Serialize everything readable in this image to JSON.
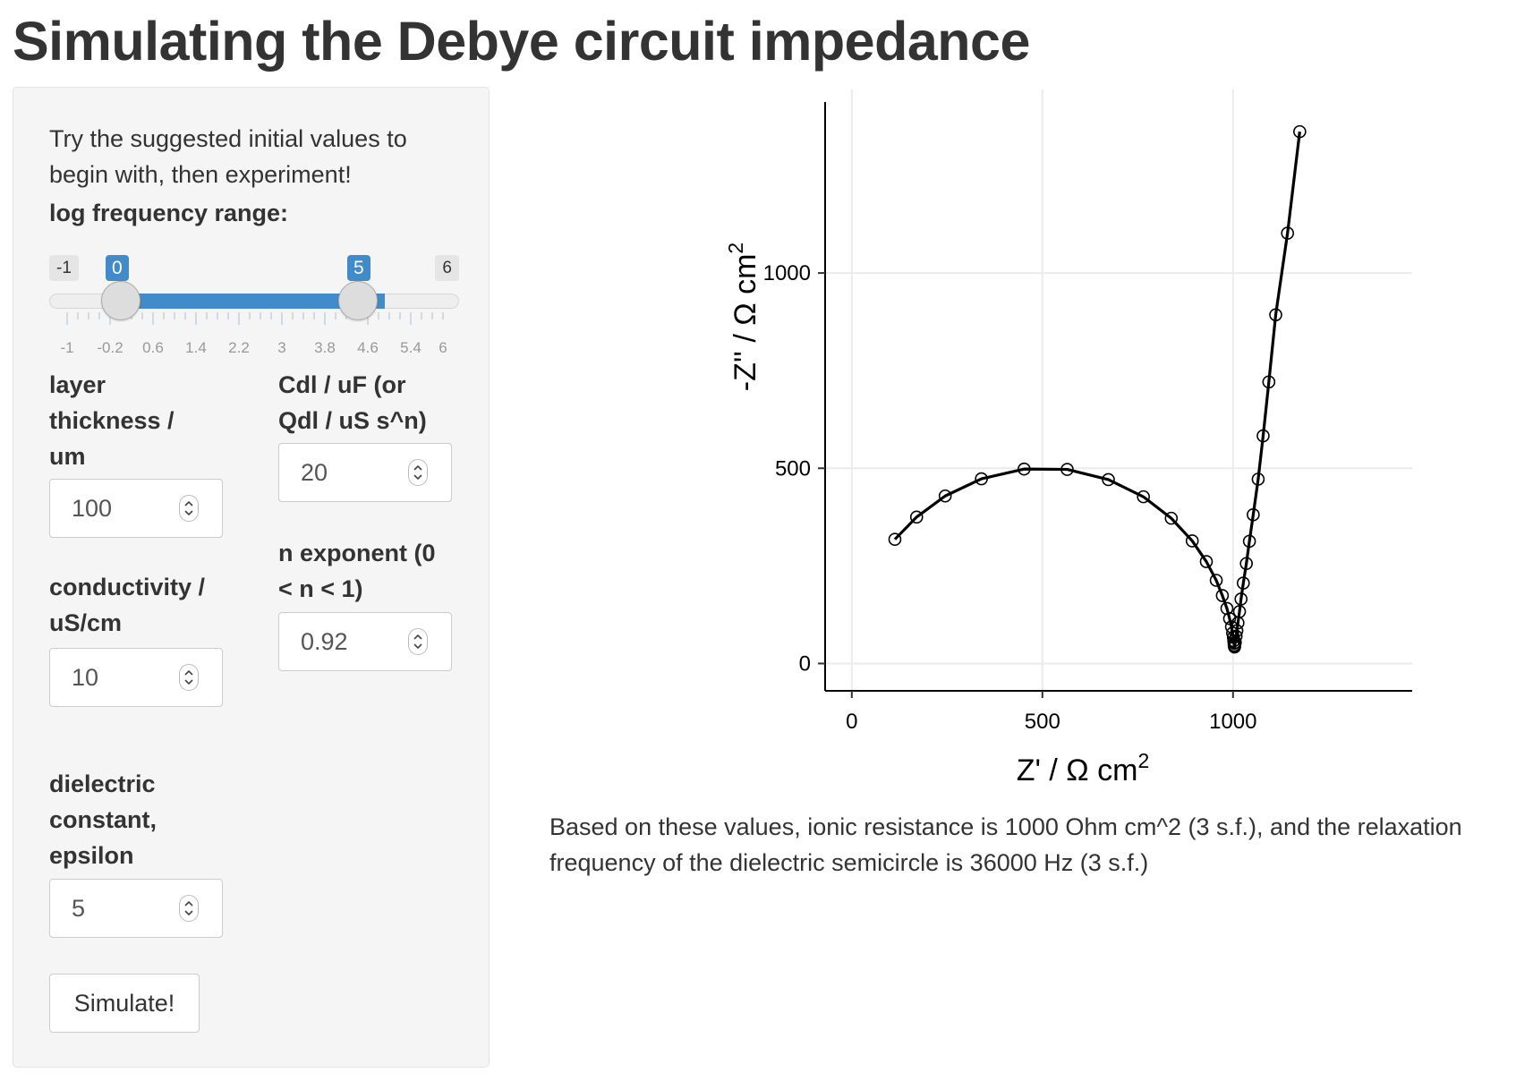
{
  "page": {
    "title": "Simulating the Debye circuit impedance"
  },
  "sidebar": {
    "intro": "Try the suggested initial values to begin with, then experiment!",
    "freq_slider": {
      "label": "log frequency range:",
      "min": "-1",
      "max": "6",
      "from": "0",
      "to": "5",
      "from_value": 0,
      "to_value": 5,
      "range": [
        -1,
        6
      ],
      "ticks": [
        "-1",
        "-0.2",
        "0.6",
        "1.4",
        "2.2",
        "3",
        "3.8",
        "4.6",
        "5.4",
        "6"
      ]
    },
    "thickness": {
      "label": [
        "layer",
        "thickness /",
        "um"
      ],
      "value": "100"
    },
    "cdl": {
      "label": [
        "Cdl / uF (or",
        "Qdl / uS s^n)"
      ],
      "value": "20"
    },
    "n_exponent": {
      "label": [
        "n exponent (0",
        "< n < 1)"
      ],
      "value": "0.92"
    },
    "conductivity": {
      "label": [
        "conductivity /",
        "uS/cm"
      ],
      "value": "10"
    },
    "dielectric": {
      "label": [
        "dielectric",
        "constant,",
        "epsilon"
      ],
      "value": "5"
    },
    "simulate_label": "Simulate!"
  },
  "result_text": "Based on these values, ionic resistance is 1000 Ohm cm^2 (3 s.f.), and the relaxation frequency of the dielectric semicircle is 36000 Hz (3 s.f.)",
  "chart_data": {
    "type": "scatter",
    "title": "",
    "xlabel": "Z' /  Ω cm",
    "ylabel": "-Z'' /  Ω cm",
    "label_superscript": "2",
    "xlim": [
      -70,
      1470
    ],
    "ylim": [
      -70,
      1470
    ],
    "xticks": [
      0,
      500,
      1000
    ],
    "yticks": [
      0,
      500,
      1000
    ],
    "grid": true,
    "series": [
      {
        "points": [
          [
            113,
            318
          ],
          [
            170,
            375
          ],
          [
            245,
            429
          ],
          [
            340,
            473
          ],
          [
            452,
            498
          ],
          [
            565,
            497
          ],
          [
            673,
            471
          ],
          [
            765,
            427
          ],
          [
            838,
            372
          ],
          [
            893,
            314
          ],
          [
            930,
            261
          ],
          [
            956,
            213
          ],
          [
            972,
            174
          ],
          [
            984,
            141
          ],
          [
            991,
            115
          ],
          [
            996,
            94
          ],
          [
            999,
            78
          ],
          [
            1001,
            67
          ],
          [
            1002,
            58
          ],
          [
            1003,
            52
          ],
          [
            1003,
            47
          ],
          [
            1004,
            44
          ],
          [
            1004,
            42
          ],
          [
            1006,
            54
          ],
          [
            1008,
            70
          ],
          [
            1010,
            84
          ],
          [
            1013,
            104
          ],
          [
            1017,
            133
          ],
          [
            1021,
            165
          ],
          [
            1027,
            206
          ],
          [
            1035,
            256
          ],
          [
            1043,
            313
          ],
          [
            1053,
            381
          ],
          [
            1066,
            472
          ],
          [
            1079,
            583
          ],
          [
            1094,
            721
          ],
          [
            1112,
            893
          ],
          [
            1143,
            1102
          ],
          [
            1175,
            1362
          ]
        ]
      }
    ]
  }
}
